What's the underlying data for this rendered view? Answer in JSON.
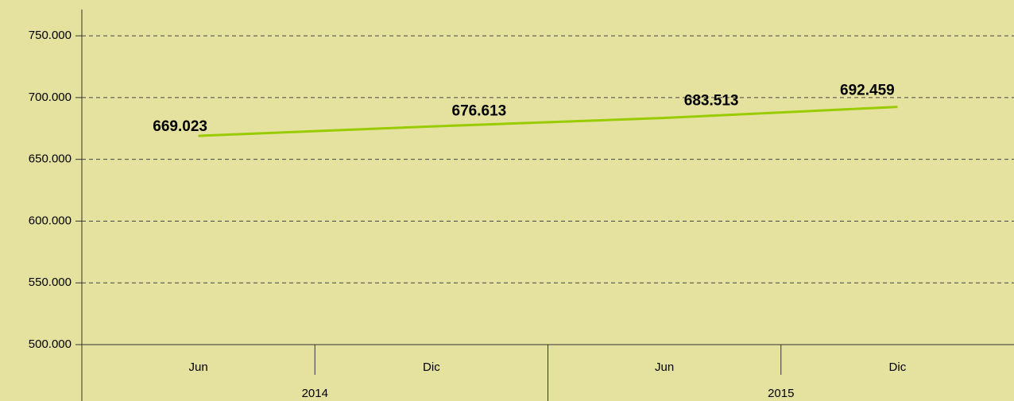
{
  "chart_data": {
    "type": "line",
    "categories": [
      "Jun",
      "Dic",
      "Jun",
      "Dic"
    ],
    "category_groups": [
      "2014",
      "2015"
    ],
    "values": [
      669023,
      676613,
      683513,
      692459
    ],
    "value_labels": [
      "669.023",
      "676.613",
      "683.513",
      "692.459"
    ],
    "color": "#99cc00",
    "ylim": [
      500000,
      770000
    ],
    "yticks": [
      {
        "value": 500000,
        "label": "500.000"
      },
      {
        "value": 550000,
        "label": "550.000"
      },
      {
        "value": 600000,
        "label": "600.000"
      },
      {
        "value": 650000,
        "label": "650.000"
      },
      {
        "value": 700000,
        "label": "700.000"
      },
      {
        "value": 750000,
        "label": "750.000"
      }
    ],
    "grid": true
  }
}
